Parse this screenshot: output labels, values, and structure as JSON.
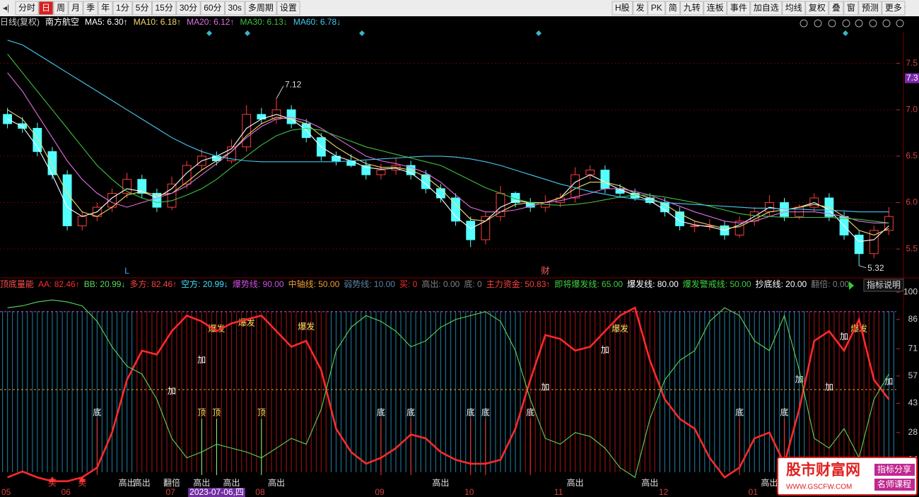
{
  "toolbar": {
    "left": [
      "分时",
      "日",
      "周",
      "月",
      "季",
      "年",
      "1分",
      "5分",
      "15分",
      "30分",
      "60分",
      "30s",
      "多周期",
      "设置"
    ],
    "right": [
      "H股",
      "发",
      "PK",
      "简",
      "九转",
      "连板",
      "事件",
      "加自选",
      "均线",
      "复权",
      "叠",
      "窗",
      "预测",
      "更多"
    ]
  },
  "info_bar": {
    "period": "日线(复权)",
    "stock": "南方航空"
  },
  "chart_data": [
    {
      "type": "candlestick",
      "up_color": "#ff3c3c",
      "down_color": "#54ffff",
      "grid": true,
      "grid_color": "#6a0000",
      "open": [
        6.95,
        6.85,
        6.8,
        6.55,
        6.3,
        5.75,
        5.85,
        5.95,
        6.1,
        6.25,
        6.1,
        5.95,
        6.2,
        6.4,
        6.5,
        6.45,
        6.6,
        6.95,
        6.9,
        7.0,
        6.85,
        6.7,
        6.5,
        6.45,
        6.4,
        6.3,
        6.35,
        6.4,
        6.3,
        6.15,
        6.05,
        5.8,
        5.6,
        5.85,
        6.1,
        6.0,
        5.95,
        6.0,
        6.05,
        6.3,
        6.35,
        6.15,
        6.1,
        6.05,
        6.0,
        5.9,
        5.75,
        5.75,
        5.75,
        5.65,
        5.8,
        5.9,
        6.0,
        5.85,
        5.95,
        6.05,
        5.85,
        5.65,
        5.45,
        5.7
      ],
      "high": [
        7.02,
        6.92,
        6.86,
        6.6,
        6.35,
        5.9,
        6.0,
        6.15,
        6.32,
        6.3,
        6.15,
        6.28,
        6.45,
        6.58,
        6.55,
        6.68,
        7.05,
        7.02,
        7.12,
        7.05,
        6.9,
        6.75,
        6.55,
        6.52,
        6.45,
        6.42,
        6.48,
        6.45,
        6.35,
        6.2,
        6.1,
        5.85,
        5.9,
        6.18,
        6.12,
        6.05,
        6.08,
        6.1,
        6.38,
        6.4,
        6.4,
        6.2,
        6.15,
        6.1,
        6.05,
        5.95,
        5.8,
        5.82,
        5.8,
        5.85,
        5.95,
        6.08,
        6.05,
        5.98,
        6.1,
        6.1,
        5.9,
        5.7,
        5.75,
        5.95
      ],
      "low": [
        6.8,
        6.75,
        6.5,
        6.25,
        5.7,
        5.7,
        5.8,
        5.9,
        6.05,
        6.05,
        5.9,
        5.92,
        6.15,
        6.35,
        6.4,
        6.42,
        6.55,
        6.85,
        6.85,
        6.8,
        6.65,
        6.45,
        6.4,
        6.38,
        6.25,
        6.25,
        6.3,
        6.25,
        6.1,
        6.0,
        5.75,
        5.52,
        5.55,
        5.8,
        5.95,
        5.9,
        5.9,
        5.95,
        6.0,
        6.25,
        6.1,
        6.05,
        6.02,
        5.98,
        5.85,
        5.7,
        5.68,
        5.7,
        5.6,
        5.62,
        5.75,
        5.85,
        5.8,
        5.82,
        5.9,
        5.8,
        5.6,
        5.32,
        5.4,
        5.65
      ],
      "close": [
        6.85,
        6.8,
        6.55,
        6.3,
        5.75,
        5.85,
        5.95,
        6.1,
        6.25,
        6.1,
        5.95,
        6.2,
        6.4,
        6.5,
        6.45,
        6.6,
        6.95,
        6.9,
        7.0,
        6.85,
        6.7,
        6.5,
        6.45,
        6.4,
        6.3,
        6.35,
        6.4,
        6.3,
        6.15,
        6.05,
        5.8,
        5.6,
        5.85,
        6.1,
        6.0,
        5.95,
        6.0,
        6.05,
        6.3,
        6.35,
        6.15,
        6.1,
        6.05,
        6.0,
        5.9,
        5.75,
        5.75,
        5.75,
        5.65,
        5.8,
        5.9,
        6.0,
        5.85,
        5.95,
        6.05,
        5.85,
        5.65,
        5.45,
        5.7,
        5.85
      ],
      "series": [
        {
          "name": "MA5: 6.30↑",
          "color": "#ffffff",
          "values": [
            6.9,
            6.82,
            6.6,
            6.3,
            5.95,
            5.85,
            5.9,
            6.05,
            6.15,
            6.12,
            6.05,
            6.15,
            6.32,
            6.45,
            6.5,
            6.58,
            6.8,
            6.9,
            6.95,
            6.9,
            6.78,
            6.6,
            6.5,
            6.45,
            6.38,
            6.36,
            6.37,
            6.32,
            6.2,
            6.05,
            5.85,
            5.72,
            5.8,
            5.95,
            6.02,
            6.0,
            6.0,
            6.05,
            6.22,
            6.3,
            6.22,
            6.14,
            6.08,
            6.02,
            5.92,
            5.8,
            5.76,
            5.74,
            5.7,
            5.76,
            5.85,
            5.95,
            5.92,
            5.95,
            6.0,
            5.92,
            5.75,
            5.58,
            5.6,
            5.75
          ]
        },
        {
          "name": "MA10: 6.18↑",
          "color": "#f5d76e",
          "values": [
            7.0,
            6.9,
            6.7,
            6.4,
            6.1,
            5.9,
            5.85,
            5.95,
            6.08,
            6.12,
            6.08,
            6.1,
            6.22,
            6.35,
            6.45,
            6.55,
            6.72,
            6.85,
            6.92,
            6.9,
            6.85,
            6.72,
            6.6,
            6.5,
            6.42,
            6.38,
            6.38,
            6.35,
            6.28,
            6.15,
            5.98,
            5.82,
            5.8,
            5.9,
            5.98,
            6.0,
            6.0,
            6.05,
            6.15,
            6.22,
            6.22,
            6.18,
            6.1,
            6.05,
            5.98,
            5.88,
            5.8,
            5.76,
            5.72,
            5.74,
            5.82,
            5.9,
            5.92,
            5.95,
            5.98,
            5.95,
            5.85,
            5.7,
            5.65,
            5.72
          ]
        },
        {
          "name": "MA20: 6.12↑",
          "color": "#e070e0",
          "values": [
            7.4,
            7.2,
            6.95,
            6.7,
            6.45,
            6.25,
            6.1,
            6.0,
            5.95,
            6.0,
            6.05,
            6.1,
            6.18,
            6.3,
            6.42,
            6.55,
            6.7,
            6.82,
            6.9,
            6.92,
            6.88,
            6.8,
            6.7,
            6.6,
            6.5,
            6.45,
            6.42,
            6.38,
            6.32,
            6.22,
            6.08,
            5.95,
            5.9,
            5.9,
            5.92,
            5.96,
            6.0,
            6.02,
            6.06,
            6.1,
            6.15,
            6.15,
            6.12,
            6.08,
            6.02,
            5.96,
            5.9,
            5.85,
            5.8,
            5.78,
            5.8,
            5.85,
            5.9,
            5.9,
            5.9,
            5.88,
            5.85,
            5.8,
            5.78,
            5.78
          ]
        },
        {
          "name": "MA30: 6.13↓",
          "color": "#40c040",
          "values": [
            7.6,
            7.4,
            7.2,
            7.0,
            6.8,
            6.6,
            6.4,
            6.25,
            6.12,
            6.05,
            6.0,
            6.02,
            6.08,
            6.15,
            6.25,
            6.38,
            6.5,
            6.62,
            6.72,
            6.78,
            6.8,
            6.78,
            6.72,
            6.66,
            6.6,
            6.56,
            6.52,
            6.48,
            6.44,
            6.4,
            6.32,
            6.24,
            6.16,
            6.1,
            6.04,
            6.0,
            5.98,
            5.97,
            5.98,
            6.0,
            6.03,
            6.06,
            6.08,
            6.08,
            6.06,
            6.03,
            6.0,
            5.96,
            5.92,
            5.88,
            5.86,
            5.85,
            5.84,
            5.84,
            5.84,
            5.84,
            5.83,
            5.82,
            5.8,
            5.78
          ]
        },
        {
          "name": "MA60: 6.78↓",
          "color": "#48c8f0",
          "values": [
            7.75,
            7.7,
            7.6,
            7.5,
            7.4,
            7.3,
            7.2,
            7.1,
            7.0,
            6.9,
            6.8,
            6.7,
            6.62,
            6.55,
            6.5,
            6.47,
            6.45,
            6.44,
            6.44,
            6.44,
            6.44,
            6.44,
            6.44,
            6.45,
            6.46,
            6.47,
            6.48,
            6.49,
            6.5,
            6.5,
            6.49,
            6.47,
            6.44,
            6.4,
            6.35,
            6.3,
            6.25,
            6.2,
            6.16,
            6.12,
            6.09,
            6.06,
            6.04,
            6.02,
            6.0,
            5.99,
            5.98,
            5.97,
            5.96,
            5.95,
            5.94,
            5.94,
            5.93,
            5.93,
            5.92,
            5.92,
            5.91,
            5.9,
            5.9,
            5.9
          ]
        }
      ],
      "ylim": [
        5.25,
        7.84
      ],
      "yticks": [
        5.5,
        {
          "value": 6,
          "label": "6.0"
        },
        6.5,
        {
          "value": 7,
          "label": "7.0"
        },
        7.5
      ],
      "price_tag": {
        "value": 7.34,
        "label": "7.3"
      },
      "markers": [
        {
          "text": "L",
          "index": 8,
          "color": "#48a8ff"
        },
        {
          "text": "财",
          "index": 36,
          "color": "#ff6060"
        }
      ]
    },
    {
      "type": "line",
      "title": "顶底量能",
      "title_color": "#ff5050",
      "categories": [
        "05",
        null,
        null,
        null,
        "06",
        null,
        null,
        null,
        null,
        null,
        null,
        "07",
        null,
        null,
        null,
        null,
        null,
        "08",
        null,
        null,
        null,
        null,
        null,
        null,
        null,
        "09",
        null,
        null,
        null,
        null,
        null,
        "10",
        null,
        null,
        null,
        null,
        null,
        "11",
        null,
        null,
        null,
        null,
        null,
        null,
        "12",
        null,
        null,
        null,
        null,
        null,
        "01",
        null,
        null,
        null,
        null,
        null,
        null,
        null,
        null,
        null
      ],
      "series": [
        {
          "name": "AA: 82.46↑",
          "color": "#ff2a2a",
          "values": [
            5,
            8,
            5,
            3,
            3,
            5,
            10,
            28,
            55,
            70,
            68,
            80,
            88,
            85,
            80,
            84,
            86,
            88,
            80,
            72,
            75,
            60,
            30,
            18,
            12,
            15,
            20,
            27,
            25,
            18,
            14,
            12,
            12,
            14,
            30,
            55,
            78,
            76,
            70,
            72,
            80,
            88,
            92,
            65,
            45,
            35,
            30,
            15,
            5,
            10,
            25,
            28,
            12,
            40,
            75,
            80,
            70,
            86,
            55,
            45
          ]
        },
        {
          "name": "BB: 20.99↓",
          "color": "#5ad85a",
          "values": [
            92,
            93,
            95,
            96,
            95,
            93,
            85,
            72,
            62,
            58,
            45,
            25,
            15,
            18,
            22,
            20,
            18,
            15,
            20,
            25,
            22,
            40,
            70,
            82,
            88,
            85,
            80,
            72,
            75,
            82,
            86,
            88,
            90,
            85,
            70,
            45,
            25,
            22,
            28,
            26,
            20,
            10,
            5,
            35,
            55,
            65,
            70,
            85,
            92,
            88,
            75,
            70,
            88,
            60,
            25,
            20,
            30,
            15,
            45,
            58
          ]
        }
      ],
      "legend_items": [
        {
          "text": "多方: 82.46↑",
          "color": "#ff4040"
        },
        {
          "text": "空方: 20.99↓",
          "color": "#40e0ff"
        },
        {
          "text": "爆势线: 90.00",
          "color": "#d050e0",
          "line": 90
        },
        {
          "text": "中轴线: 50.00",
          "color": "#f0a030",
          "line": 50
        },
        {
          "text": "弱势线: 10.00",
          "color": "#6080a0"
        },
        {
          "text": "买: 0",
          "color": "#ff3030"
        },
        {
          "text": "高出: 0.00",
          "color": "#808080"
        },
        {
          "text": "底: 0",
          "color": "#808080"
        },
        {
          "text": "主力资金: 50.83↑",
          "color": "#ff4040"
        },
        {
          "text": "即将爆发线: 65.00",
          "color": "#40d040"
        },
        {
          "text": "爆发线: 80.00",
          "color": "#ffffff"
        },
        {
          "text": "爆发警戒线: 50.00",
          "color": "#40d040"
        },
        {
          "text": "抄底线: 20.00",
          "color": "#ffffff"
        },
        {
          "text": "翻倍: 0.00",
          "color": "#808080"
        }
      ],
      "button": "指标说明",
      "ylim": [
        0,
        103
      ],
      "yticks": [
        14,
        28,
        43,
        57,
        71,
        86,
        100
      ],
      "annotations": [
        {
          "text": "底",
          "index": 6,
          "value": 38,
          "color": "#ffffff",
          "stem_color": "#ff3030"
        },
        {
          "text": "顶",
          "index": 13,
          "value": 38,
          "color": "#ffe060",
          "stem_color": "#80ff80"
        },
        {
          "text": "顶",
          "index": 14,
          "value": 38,
          "color": "#ffe060",
          "stem_color": "#80ff80"
        },
        {
          "text": "顶",
          "index": 17,
          "value": 38,
          "color": "#ffe060",
          "stem_color": "#80ff80"
        },
        {
          "text": "底",
          "index": 25,
          "value": 38,
          "color": "#ffffff",
          "stem_color": "#ff3030"
        },
        {
          "text": "底",
          "index": 27,
          "value": 38,
          "color": "#ffffff",
          "stem_color": "#ff3030"
        },
        {
          "text": "底",
          "index": 31,
          "value": 38,
          "color": "#ffffff",
          "stem_color": "#ff3030"
        },
        {
          "text": "底",
          "index": 32,
          "value": 38,
          "color": "#ffffff",
          "stem_color": "#ff3030"
        },
        {
          "text": "底",
          "index": 35,
          "value": 38,
          "color": "#ffffff",
          "stem_color": "#ff3030"
        },
        {
          "text": "底",
          "index": 49,
          "value": 38,
          "color": "#ffffff",
          "stem_color": "#ff3030"
        },
        {
          "text": "底",
          "index": 52,
          "value": 38,
          "color": "#ffffff",
          "stem_color": "#ff3030"
        },
        {
          "text": "加",
          "index": 13,
          "value": 65,
          "color": "#ffffff"
        },
        {
          "text": "加",
          "index": 11,
          "value": 49,
          "color": "#ffffff"
        },
        {
          "text": "加",
          "index": 36,
          "value": 51,
          "color": "#ffffff"
        },
        {
          "text": "加",
          "index": 40,
          "value": 70,
          "color": "#ffffff"
        },
        {
          "text": "加",
          "index": 53,
          "value": 55,
          "color": "#ffffff"
        },
        {
          "text": "加",
          "index": 55,
          "value": 51,
          "color": "#ffffff"
        },
        {
          "text": "加",
          "index": 59,
          "value": 54,
          "color": "#ffffff"
        },
        {
          "text": "加",
          "index": 56,
          "value": 77,
          "color": "#ffffff"
        },
        {
          "text": "爆发",
          "index": 14,
          "value": 81,
          "color": "#ffe060"
        },
        {
          "text": "爆发",
          "index": 16,
          "value": 84,
          "color": "#ffe060"
        },
        {
          "text": "爆发",
          "index": 20,
          "value": 82,
          "color": "#ffe060"
        },
        {
          "text": "爆发",
          "index": 41,
          "value": 81,
          "color": "#ffe060"
        },
        {
          "text": "爆发",
          "index": 57,
          "value": 81,
          "color": "#ffe060"
        }
      ],
      "bottom_signals": [
        {
          "text": "买",
          "index": 3,
          "color": "#ff4040",
          "arrow": true
        },
        {
          "text": "买",
          "index": 5,
          "color": "#ff4040",
          "arrow": true
        },
        {
          "text": "高出",
          "index": 8,
          "color": "#e0e0e0"
        },
        {
          "text": "高出",
          "index": 9,
          "color": "#e0e0e0"
        },
        {
          "text": "翻倍",
          "index": 11,
          "color": "#e0e0e0"
        },
        {
          "text": "高出",
          "index": 13,
          "color": "#e0e0e0"
        },
        {
          "text": "高出",
          "index": 15,
          "color": "#e0e0e0"
        },
        {
          "text": "高出",
          "index": 18,
          "color": "#e0e0e0"
        },
        {
          "text": "高出",
          "index": 29,
          "color": "#e0e0e0"
        },
        {
          "text": "高出",
          "index": 38,
          "color": "#e0e0e0"
        },
        {
          "text": "高出",
          "index": 43,
          "color": "#e0e0e0"
        },
        {
          "text": "高出",
          "index": 51,
          "color": "#e0e0e0"
        }
      ],
      "cursor_label": {
        "text": "2023-07-06,四",
        "index": 12
      }
    }
  ],
  "watermark": {
    "title": "股市财富网",
    "tags": [
      "指标分享",
      "名师课程"
    ],
    "url": "WWW.GSCFW.COM"
  }
}
